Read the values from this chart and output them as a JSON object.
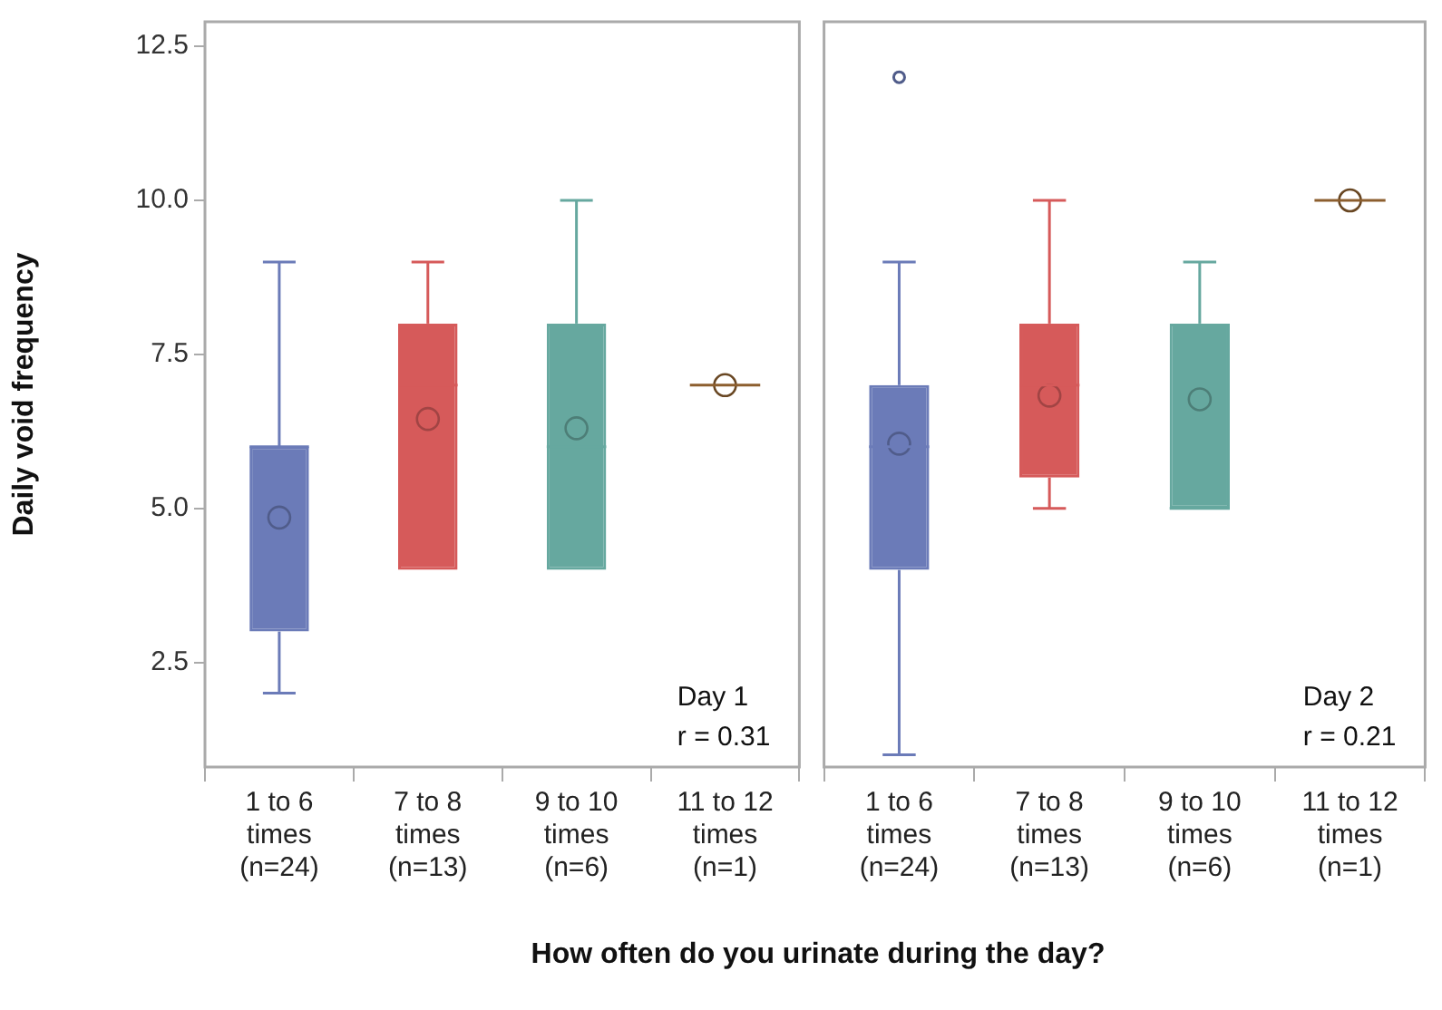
{
  "chart_data": [
    {
      "type": "box",
      "ylabel": "Daily void frequency",
      "xlabel": "How often do you urinate during the day?",
      "categories": [
        "1 to 6\ntimes\n(n=24)",
        "7 to 8\ntimes\n(n=13)",
        "9 to 10\ntimes\n(n=6)",
        "11 to 12\ntimes\n(n=1)"
      ],
      "colors": [
        "#6b7bb8",
        "#d65a5a",
        "#66a89f",
        "#8c5e2e"
      ],
      "boxes": [
        {
          "low": 2,
          "q1": 3,
          "median": 6,
          "q3": 6,
          "high": 9,
          "mean": 4.85
        },
        {
          "low": 4,
          "q1": 4,
          "median": 7,
          "q3": 8,
          "high": 9,
          "mean": 6.45
        },
        {
          "low": 4,
          "q1": 4,
          "median": 6,
          "q3": 8,
          "high": 10,
          "mean": 6.3
        },
        {
          "low": 7,
          "q1": 7,
          "median": 7,
          "q3": 7,
          "high": 7,
          "mean": 7
        }
      ],
      "ylim": [
        0.8,
        12.9
      ],
      "yticks": [
        {
          "value": 2.5,
          "label": "2.5"
        },
        {
          "value": 5,
          "label": "5.0"
        },
        {
          "value": 7.5,
          "label": "7.5"
        },
        {
          "value": 10,
          "label": "10.0"
        },
        {
          "value": 12.5,
          "label": "12.5"
        }
      ],
      "annotations": [
        "Day 1",
        "r = 0.31"
      ],
      "legend": false,
      "grid": false
    },
    {
      "type": "box",
      "categories": [
        "1 to 6\ntimes\n(n=24)",
        "7 to 8\ntimes\n(n=13)",
        "9 to 10\ntimes\n(n=6)",
        "11 to 12\ntimes\n(n=1)"
      ],
      "colors": [
        "#6b7bb8",
        "#d65a5a",
        "#66a89f",
        "#8c5e2e"
      ],
      "boxes": [
        {
          "low": 1,
          "q1": 4,
          "median": 6,
          "q3": 7,
          "high": 9,
          "mean": 6.05,
          "outliers": [
            12
          ]
        },
        {
          "low": 5,
          "q1": 5.5,
          "median": 7,
          "q3": 8,
          "high": 10,
          "mean": 6.83
        },
        {
          "low": 5,
          "q1": 5,
          "median": 5,
          "q3": 8,
          "high": 9,
          "mean": 6.77
        },
        {
          "low": 10,
          "q1": 10,
          "median": 10,
          "q3": 10,
          "high": 10,
          "mean": 10
        }
      ],
      "ylim": [
        0.8,
        12.9
      ],
      "tick_labels": "x",
      "annotations": [
        "Day 2",
        "r = 0.21"
      ],
      "legend": false,
      "grid": false
    }
  ]
}
